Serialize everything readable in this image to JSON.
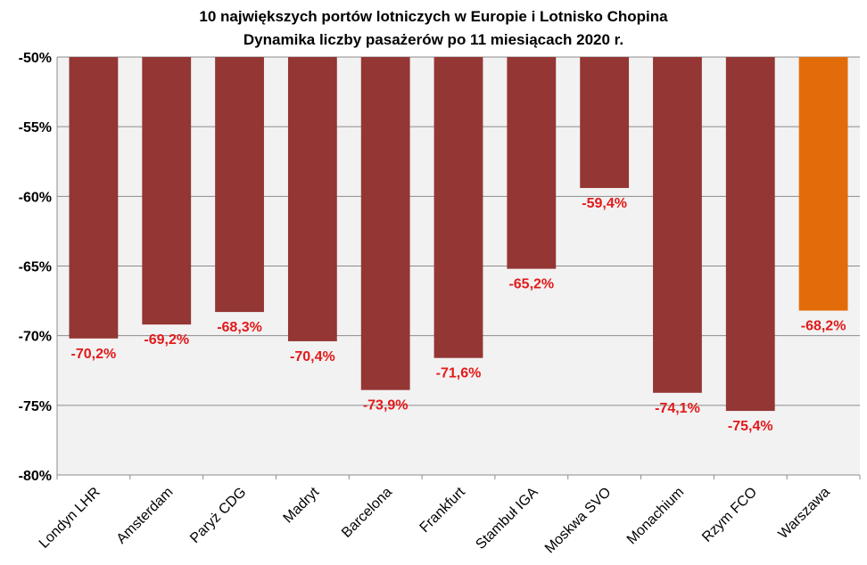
{
  "chart_data": {
    "type": "bar",
    "title": "10 największych  portów lotniczych  w Europie  i Lotnisko  Chopina",
    "subtitle": "Dynamika  liczby  pasażerów  po 11 miesiącach  2020 r.",
    "categories": [
      "Londyn LHR",
      "Amsterdam",
      "Paryż CDG",
      "Madryt",
      "Barcelona",
      "Frankfurt",
      "Stambuł IGA",
      "Moskwa SVO",
      "Monachium",
      "Rzym FCO",
      "Warszawa"
    ],
    "values": [
      -70.2,
      -69.2,
      -68.3,
      -70.4,
      -73.9,
      -71.6,
      -65.2,
      -59.4,
      -74.1,
      -75.4,
      -68.2
    ],
    "data_labels": [
      "-70,2%",
      "-69,2%",
      "-68,3%",
      "-70,4%",
      "-73,9%",
      "-71,6%",
      "-65,2%",
      "-59,4%",
      "-74,1%",
      "-75,4%",
      "-68,2%"
    ],
    "y_ticks": [
      -50,
      -55,
      -60,
      -65,
      -70,
      -75,
      -80
    ],
    "y_tick_labels": [
      "-50%",
      "-55%",
      "-60%",
      "-65%",
      "-70%",
      "-75%",
      "-80%"
    ],
    "ylim": [
      -80,
      -50
    ],
    "xlabel": "",
    "ylabel": "",
    "grid": true,
    "legend": "none",
    "colors": {
      "bar": "#943634",
      "highlight_bar": "#E36C0A",
      "highlight_index": 10,
      "data_label": "#E31A1A",
      "plot_background": "#F2F2F2",
      "gridline": "#8C8C8C"
    }
  }
}
